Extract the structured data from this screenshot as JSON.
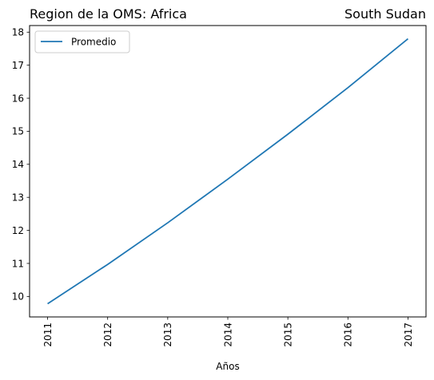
{
  "chart_data": {
    "type": "line",
    "title_left": "Region de la OMS: Africa",
    "title_right": "South Sudan",
    "xlabel": "Años",
    "ylabel": "",
    "x": [
      2011,
      2012,
      2013,
      2014,
      2015,
      2016,
      2017
    ],
    "series": [
      {
        "name": "Promedio",
        "color": "#1f77b4",
        "values": [
          9.78,
          10.97,
          12.23,
          13.55,
          14.91,
          16.32,
          17.8
        ]
      }
    ],
    "xlim": [
      2010.7,
      2017.3
    ],
    "ylim": [
      9.38,
      18.2
    ],
    "yticks": [
      10,
      11,
      12,
      13,
      14,
      15,
      16,
      17,
      18
    ],
    "xtick_rotation": "vertical",
    "legend_position": "upper-left",
    "grid": false
  }
}
